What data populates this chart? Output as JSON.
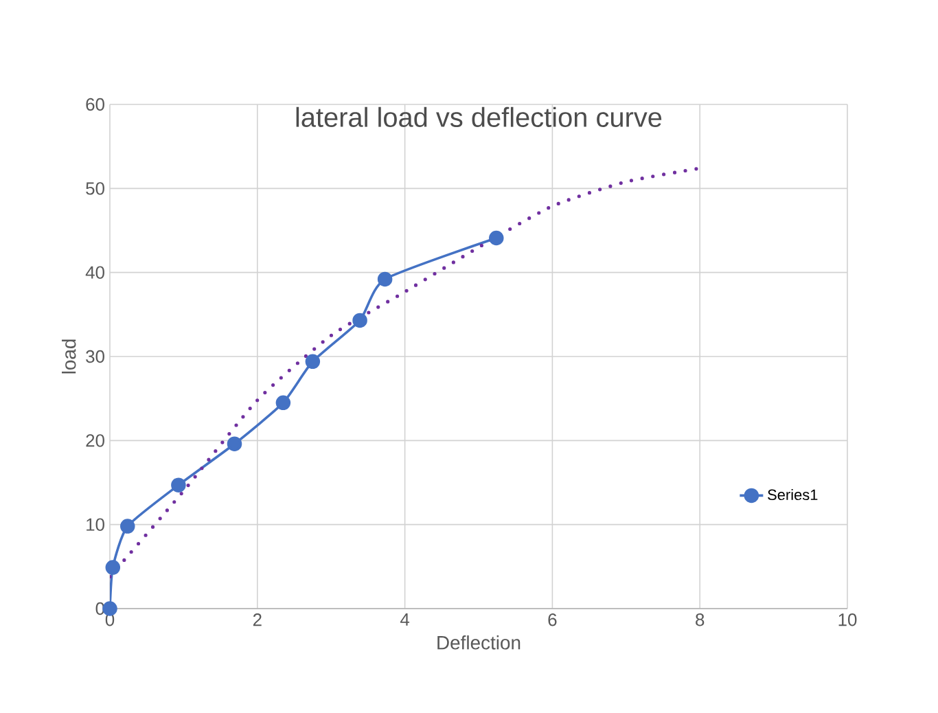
{
  "chart_data": {
    "type": "line",
    "title": "lateral load vs deflection curve",
    "xlabel": "Deflection",
    "ylabel": "load",
    "xlim": [
      0,
      10
    ],
    "ylim": [
      0,
      60
    ],
    "xticks": [
      0,
      2,
      4,
      6,
      8,
      10
    ],
    "yticks": [
      0,
      10,
      20,
      30,
      40,
      50,
      60
    ],
    "grid": true,
    "legend": "right",
    "series": [
      {
        "name": "Series1",
        "color": "#4472c4",
        "marker": "circle",
        "line_style": "solid",
        "x": [
          0,
          0.04,
          0.24,
          0.93,
          1.69,
          2.35,
          2.75,
          3.39,
          3.73,
          5.24
        ],
        "values": [
          0,
          4.9,
          9.8,
          14.7,
          19.6,
          24.5,
          29.4,
          34.3,
          39.2,
          44.1
        ]
      },
      {
        "color": "#7030a0",
        "marker": "none",
        "line_style": "dotted",
        "x": [
          0,
          1,
          2,
          3,
          4,
          5,
          6,
          7,
          8
        ],
        "values": [
          3.8,
          14,
          24.8,
          32.5,
          37.7,
          43,
          47.9,
          50.8,
          52.4
        ]
      }
    ]
  }
}
